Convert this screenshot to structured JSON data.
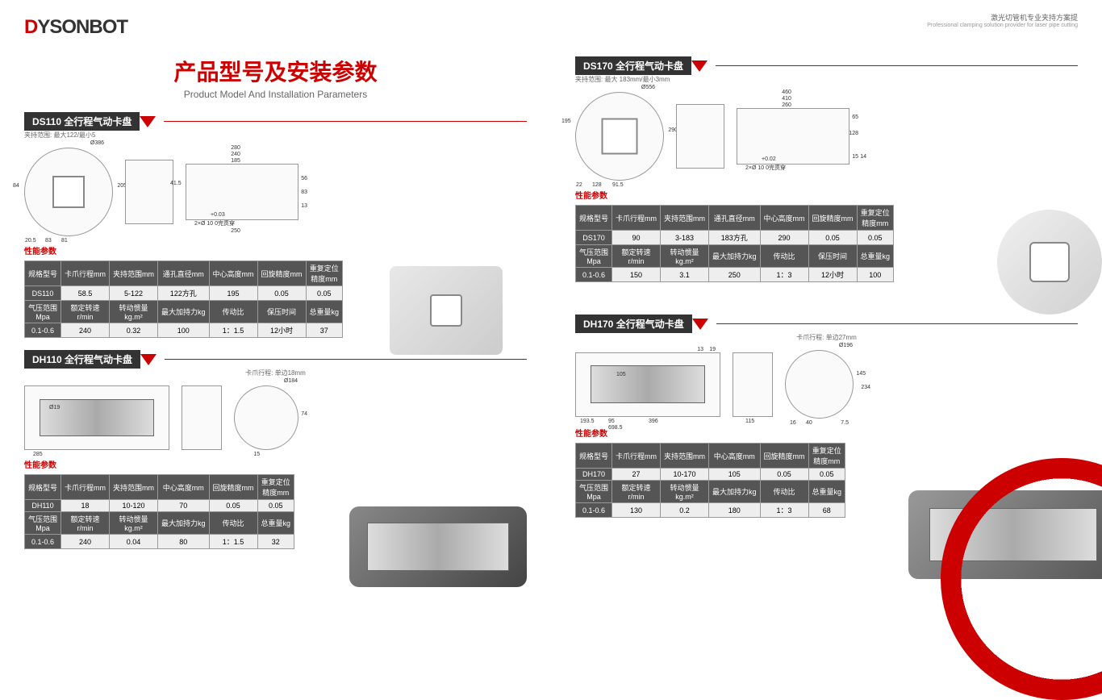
{
  "logo": {
    "text": "DYSONBOT"
  },
  "header_right": {
    "cn": "激光切管机专业夹持方案提",
    "en": "Professional clamping solution provider for laser pipe cutting"
  },
  "main_title": {
    "cn": "产品型号及安装参数",
    "en": "Product Model And Installation Parameters"
  },
  "colors": {
    "accent": "#c00",
    "dark": "#333",
    "th_bg": "#555",
    "td_bg": "#eee"
  },
  "sections": {
    "ds110": {
      "title": "DS110 全行程气动卡盘",
      "note": "夹持范围: 最大122/最小5",
      "diagrams": {
        "circle_dia": "Ø386",
        "rect_w": "280",
        "rect_w2": "240",
        "rect_w3": "185",
        "rect_h": "41.5",
        "tol": "+0.03",
        "hole": "2×Ø 10 0完贯穿",
        "base": "250",
        "side1": "20.5",
        "side2": "83",
        "side3": "81",
        "h1": "205",
        "h2": "84",
        "r1": "56",
        "r2": "83",
        "r3": "13"
      },
      "param_label": "性能参数",
      "table": {
        "headers1": [
          "规格型号",
          "卡爪行程mm",
          "夹持范围mm",
          "通孔直径mm",
          "中心高度mm",
          "回旋精度mm",
          "重复定位\n精度mm"
        ],
        "row1": [
          "DS110",
          "58.5",
          "5-122",
          "122方孔",
          "195",
          "0.05",
          "0.05"
        ],
        "headers2": [
          "气压范围\nMpa",
          "额定转速\nr/min",
          "转动惯量\nkg.m²",
          "最大加持力kg",
          "传动比",
          "保压时间",
          "总重量kg"
        ],
        "row2": [
          "0.1-0.6",
          "240",
          "0.32",
          "100",
          "1：1.5",
          "12小时",
          "37"
        ]
      }
    },
    "dh110": {
      "title": "DH110 全行程气动卡盘",
      "note": "卡爪行程: 单边18mm",
      "diagrams": {
        "dia": "Ø184",
        "h": "74",
        "len": "285",
        "d2": "Ø19",
        "d3": "15"
      },
      "param_label": "性能参数",
      "table": {
        "headers1": [
          "规格型号",
          "卡爪行程mm",
          "夹持范围mm",
          "中心高度mm",
          "回旋精度mm",
          "重复定位\n精度mm"
        ],
        "row1": [
          "DH110",
          "18",
          "10-120",
          "70",
          "0.05",
          "0.05"
        ],
        "headers2": [
          "气压范围\nMpa",
          "额定转速\nr/min",
          "转动惯量\nkg.m²",
          "最大加持力kg",
          "传动比",
          "总重量kg"
        ],
        "row2": [
          "0.1-0.6",
          "240",
          "0.04",
          "80",
          "1：1.5",
          "32"
        ]
      }
    },
    "ds170": {
      "title": "DS170 全行程气动卡盘",
      "note": "夹持范围: 最大 183mm/最小3mm",
      "diagrams": {
        "circle_dia": "Ø556",
        "rect_w": "460",
        "rect_w2": "410",
        "rect_w3": "260",
        "tol": "+0.02",
        "hole": "2×Ø 10 0完贯穿",
        "side1": "22",
        "side2": "128",
        "side3": "91.5",
        "h1": "290",
        "h2": "195",
        "r1": "15",
        "r2": "14",
        "r3": "65",
        "r4": "128"
      },
      "param_label": "性能参数",
      "table": {
        "headers1": [
          "规格型号",
          "卡爪行程mm",
          "夹持范围mm",
          "通孔直径mm",
          "中心高度mm",
          "回旋精度mm",
          "重复定位\n精度mm"
        ],
        "row1": [
          "DS170",
          "90",
          "3-183",
          "183方孔",
          "290",
          "0.05",
          "0.05"
        ],
        "headers2": [
          "气压范围\nMpa",
          "额定转速\nr/min",
          "转动惯量\nkg.m²",
          "最大加持力kg",
          "传动比",
          "保压时间",
          "总重量kg"
        ],
        "row2": [
          "0.1-0.6",
          "150",
          "3.1",
          "250",
          "1：3",
          "12小时",
          "100"
        ]
      }
    },
    "dh170": {
      "title": "DH170 全行程气动卡盘",
      "note": "卡爪行程: 单边27mm",
      "diagrams": {
        "dia": "Ø196",
        "h": "145",
        "len": "193.5",
        "d2": "95",
        "d3": "396",
        "d4": "698.5",
        "d5": "105",
        "d6": "13",
        "d7": "19",
        "d8": "115",
        "d9": "16",
        "d10": "40",
        "d11": "7.5",
        "d12": "234"
      },
      "param_label": "性能参数",
      "table": {
        "headers1": [
          "规格型号",
          "卡爪行程mm",
          "夹持范围mm",
          "中心高度mm",
          "回旋精度mm",
          "重复定位\n精度mm"
        ],
        "row1": [
          "DH170",
          "27",
          "10-170",
          "105",
          "0.05",
          "0.05"
        ],
        "headers2": [
          "气压范围\nMpa",
          "额定转速\nr/min",
          "转动惯量\nkg.m²",
          "最大加持力kg",
          "传动比",
          "总重量kg"
        ],
        "row2": [
          "0.1-0.6",
          "130",
          "0.2",
          "180",
          "1：3",
          "68"
        ]
      }
    }
  }
}
